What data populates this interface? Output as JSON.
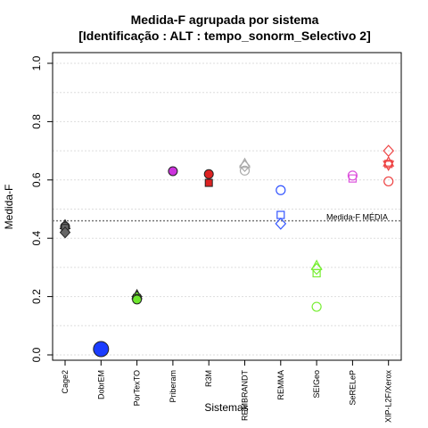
{
  "chart_data": {
    "type": "scatter",
    "title": "Medida-F agrupada por sistema",
    "subtitle": "[Identificação : ALT : tempo_sonorm_Selectivo 2]",
    "xlabel": "Sistemas",
    "ylabel": "Medida-F",
    "ylim": [
      0.0,
      1.0
    ],
    "yticks": [
      "0.0",
      "0.2",
      "0.4",
      "0.6",
      "0.8",
      "1.0"
    ],
    "grid": "horizontal-dotted",
    "categories": [
      "Cage2",
      "DobrEM",
      "PorTexTO",
      "Priberam",
      "R3M",
      "REMBRANDT",
      "REMMA",
      "SEIGeo",
      "SeRELeP",
      "XIP-L2F/Xerox"
    ],
    "reference_line": {
      "label": "Medida-F MÉDIA",
      "value": 0.46
    },
    "points": [
      {
        "category": "Cage2",
        "value": 0.445,
        "shape": "triangle",
        "color": "#666666",
        "filled": true
      },
      {
        "category": "Cage2",
        "value": 0.44,
        "shape": "circle",
        "color": "#666666",
        "filled": true
      },
      {
        "category": "Cage2",
        "value": 0.435,
        "shape": "square",
        "color": "#666666",
        "filled": true
      },
      {
        "category": "Cage2",
        "value": 0.42,
        "shape": "diamond",
        "color": "#666666",
        "filled": true
      },
      {
        "category": "DobrEM",
        "value": 0.02,
        "shape": "circle-large",
        "color": "#1a3cff",
        "filled": true
      },
      {
        "category": "PorTexTO",
        "value": 0.205,
        "shape": "triangle",
        "color": "#6ee62e",
        "filled": true
      },
      {
        "category": "PorTexTO",
        "value": 0.2,
        "shape": "diamond",
        "color": "#6ee62e",
        "filled": true
      },
      {
        "category": "PorTexTO",
        "value": 0.195,
        "shape": "square",
        "color": "#6ee62e",
        "filled": true
      },
      {
        "category": "PorTexTO",
        "value": 0.19,
        "shape": "circle",
        "color": "#6ee62e",
        "filled": true
      },
      {
        "category": "Priberam",
        "value": 0.63,
        "shape": "circle",
        "color": "#cc33dd",
        "filled": true
      },
      {
        "category": "R3M",
        "value": 0.62,
        "shape": "circle",
        "color": "#dd2222",
        "filled": true
      },
      {
        "category": "R3M",
        "value": 0.59,
        "shape": "square",
        "color": "#dd2222",
        "filled": true
      },
      {
        "category": "REMBRANDT",
        "value": 0.655,
        "shape": "triangle",
        "color": "#aaaaaa",
        "filled": false
      },
      {
        "category": "REMBRANDT",
        "value": 0.648,
        "shape": "diamond",
        "color": "#aaaaaa",
        "filled": false
      },
      {
        "category": "REMBRANDT",
        "value": 0.632,
        "shape": "circle",
        "color": "#aaaaaa",
        "filled": false
      },
      {
        "category": "REMMA",
        "value": 0.565,
        "shape": "circle",
        "color": "#3355ff",
        "filled": false
      },
      {
        "category": "REMMA",
        "value": 0.48,
        "shape": "square",
        "color": "#3355ff",
        "filled": false
      },
      {
        "category": "REMMA",
        "value": 0.45,
        "shape": "diamond",
        "color": "#3355ff",
        "filled": false
      },
      {
        "category": "SEIGeo",
        "value": 0.305,
        "shape": "triangle",
        "color": "#77ee33",
        "filled": false
      },
      {
        "category": "SEIGeo",
        "value": 0.295,
        "shape": "diamond",
        "color": "#77ee33",
        "filled": false
      },
      {
        "category": "SEIGeo",
        "value": 0.28,
        "shape": "square",
        "color": "#77ee33",
        "filled": false
      },
      {
        "category": "SEIGeo",
        "value": 0.165,
        "shape": "circle",
        "color": "#77ee33",
        "filled": false
      },
      {
        "category": "SeRELeP",
        "value": 0.615,
        "shape": "circle",
        "color": "#dd55dd",
        "filled": false
      },
      {
        "category": "SeRELeP",
        "value": 0.605,
        "shape": "square",
        "color": "#dd55dd",
        "filled": false
      },
      {
        "category": "XIP-L2F/Xerox",
        "value": 0.7,
        "shape": "diamond",
        "color": "#ee4444",
        "filled": false
      },
      {
        "category": "XIP-L2F/Xerox",
        "value": 0.66,
        "shape": "triangle",
        "color": "#ee4444",
        "filled": false
      },
      {
        "category": "XIP-L2F/Xerox",
        "value": 0.652,
        "shape": "triangle-down",
        "color": "#ee4444",
        "filled": false
      },
      {
        "category": "XIP-L2F/Xerox",
        "value": 0.655,
        "shape": "square",
        "color": "#ee4444",
        "filled": false
      },
      {
        "category": "XIP-L2F/Xerox",
        "value": 0.595,
        "shape": "circle",
        "color": "#ee4444",
        "filled": false
      }
    ]
  }
}
